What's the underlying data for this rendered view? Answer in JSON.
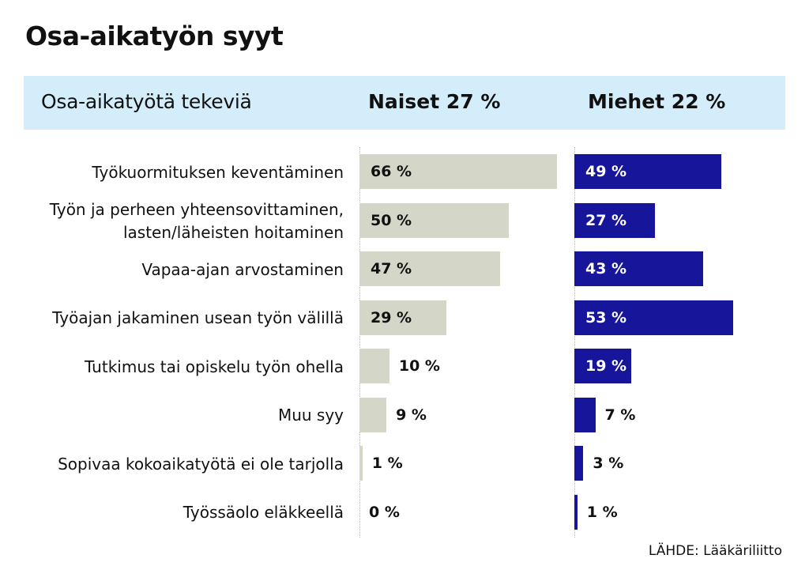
{
  "title": "Osa-aikatyön syyt",
  "header": {
    "label": "Osa-aikatyötä tekeviä",
    "women": "Naiset 27 %",
    "men": "Miehet 22 %"
  },
  "source": "LÄHDE: Lääkäriliitto",
  "colors": {
    "women": "#d4d6c8",
    "men": "#17159a",
    "header_band": "#d3eefa"
  },
  "chart_data": {
    "type": "bar",
    "orientation": "horizontal",
    "title": "Osa-aikatyön syyt",
    "categories": [
      [
        "Työkuormituksen keventäminen"
      ],
      [
        "Työn ja perheen yhteensovittaminen,",
        "lasten/läheisten hoitaminen"
      ],
      [
        "Vapaa-ajan arvostaminen"
      ],
      [
        "Työajan jakaminen usean työn välillä"
      ],
      [
        "Tutkimus tai opiskelu työn ohella"
      ],
      [
        "Muu syy"
      ],
      [
        "Sopivaa kokoaikatyötä ei ole tarjolla"
      ],
      [
        "Työssäolo eläkkeellä"
      ]
    ],
    "series": [
      {
        "name": "Naiset 27 %",
        "values": [
          66,
          50,
          47,
          29,
          10,
          9,
          1,
          0
        ],
        "labels": [
          "66 %",
          "50 %",
          "47 %",
          "29 %",
          "10 %",
          "9 %",
          "1 %",
          "0 %"
        ]
      },
      {
        "name": "Miehet 22 %",
        "values": [
          49,
          27,
          43,
          53,
          19,
          7,
          3,
          1
        ],
        "labels": [
          "49 %",
          "27 %",
          "43 %",
          "53 %",
          "19 %",
          "7 %",
          "3 %",
          "1 %"
        ]
      }
    ],
    "unit": "%",
    "xlim": [
      0,
      66
    ],
    "grid": false,
    "legend": "top"
  }
}
